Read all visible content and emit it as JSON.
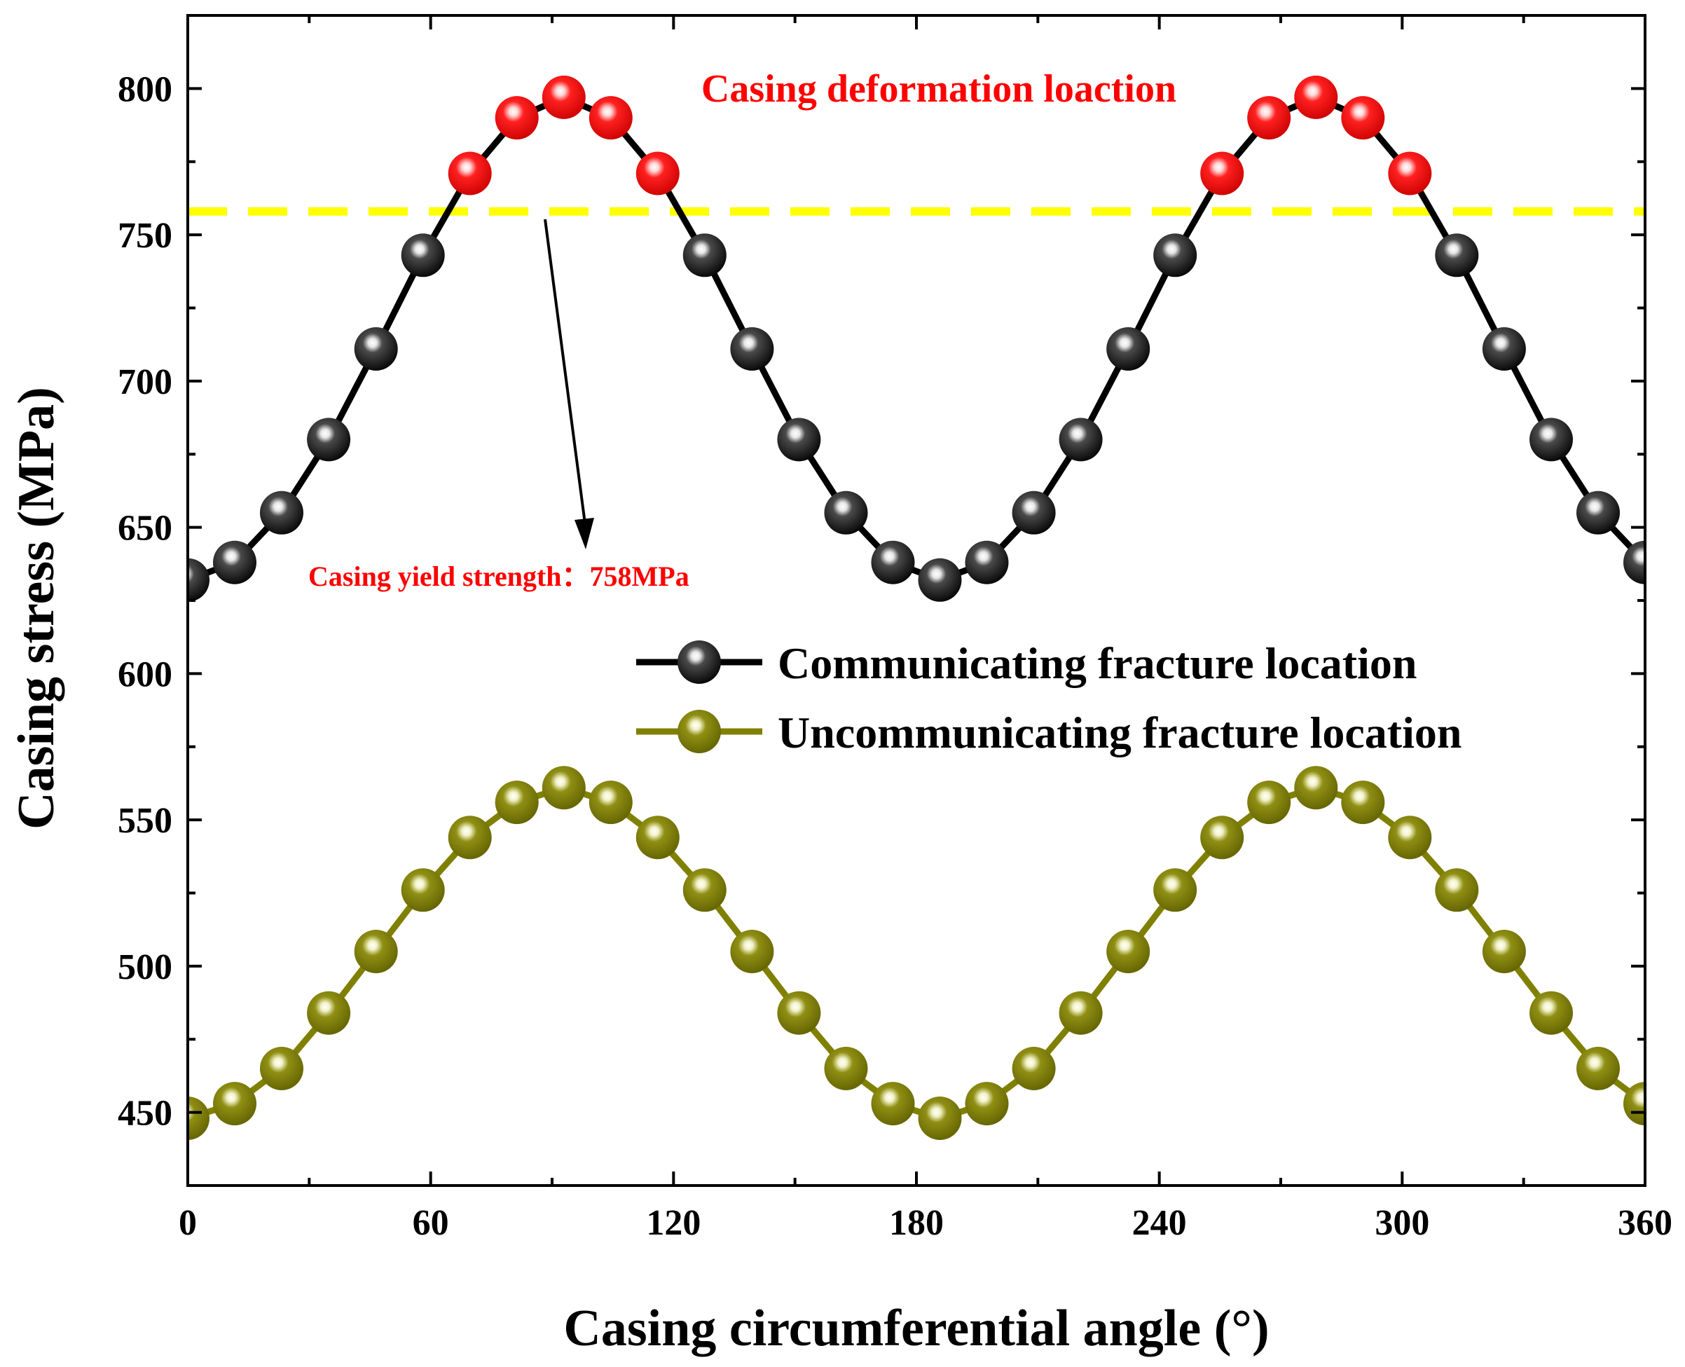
{
  "chart_data": {
    "type": "line",
    "xlabel": "Casing circumferential angle (°)",
    "ylabel": "Casing stress (MPa)",
    "xlim": [
      0,
      360
    ],
    "ylim": [
      425,
      825
    ],
    "xticks": [
      0,
      60,
      120,
      180,
      240,
      300,
      360
    ],
    "yticks": [
      450,
      500,
      550,
      600,
      650,
      700,
      750,
      800
    ],
    "x": [
      0,
      11.6,
      23.2,
      34.8,
      46.5,
      58.1,
      69.7,
      81.3,
      92.9,
      104.5,
      116.1,
      127.7,
      139.4,
      151.0,
      162.6,
      174.2,
      185.8,
      197.4,
      209.0,
      220.6,
      232.3,
      243.9,
      255.5,
      267.1,
      278.7,
      290.3,
      301.9,
      313.5,
      325.2,
      336.8,
      348.4,
      360
    ],
    "series": [
      {
        "name": "Communicating fracture location",
        "color": "#000000",
        "values": [
          632,
          638,
          655,
          680,
          711,
          743,
          771,
          790,
          797,
          790,
          771,
          743,
          711,
          680,
          655,
          638,
          632,
          638,
          655,
          680,
          711,
          743,
          771,
          790,
          797,
          790,
          771,
          743,
          711,
          680,
          655,
          638
        ]
      },
      {
        "name": "Uncommunicating fracture location",
        "color": "#808000",
        "values": [
          448,
          453,
          465,
          484,
          505,
          526,
          544,
          556,
          561,
          556,
          544,
          526,
          505,
          484,
          465,
          453,
          448,
          453,
          465,
          484,
          505,
          526,
          544,
          556,
          561,
          556,
          544,
          526,
          505,
          484,
          465,
          453
        ]
      }
    ],
    "highlight_color": "#ff0000",
    "yield_line": {
      "value": 758,
      "color": "#ffff00",
      "style": "dashed"
    },
    "annotations": {
      "deformation": "Casing deformation loaction",
      "yield": "Casing yield strength：758MPa"
    },
    "legend_position": "center-right"
  }
}
